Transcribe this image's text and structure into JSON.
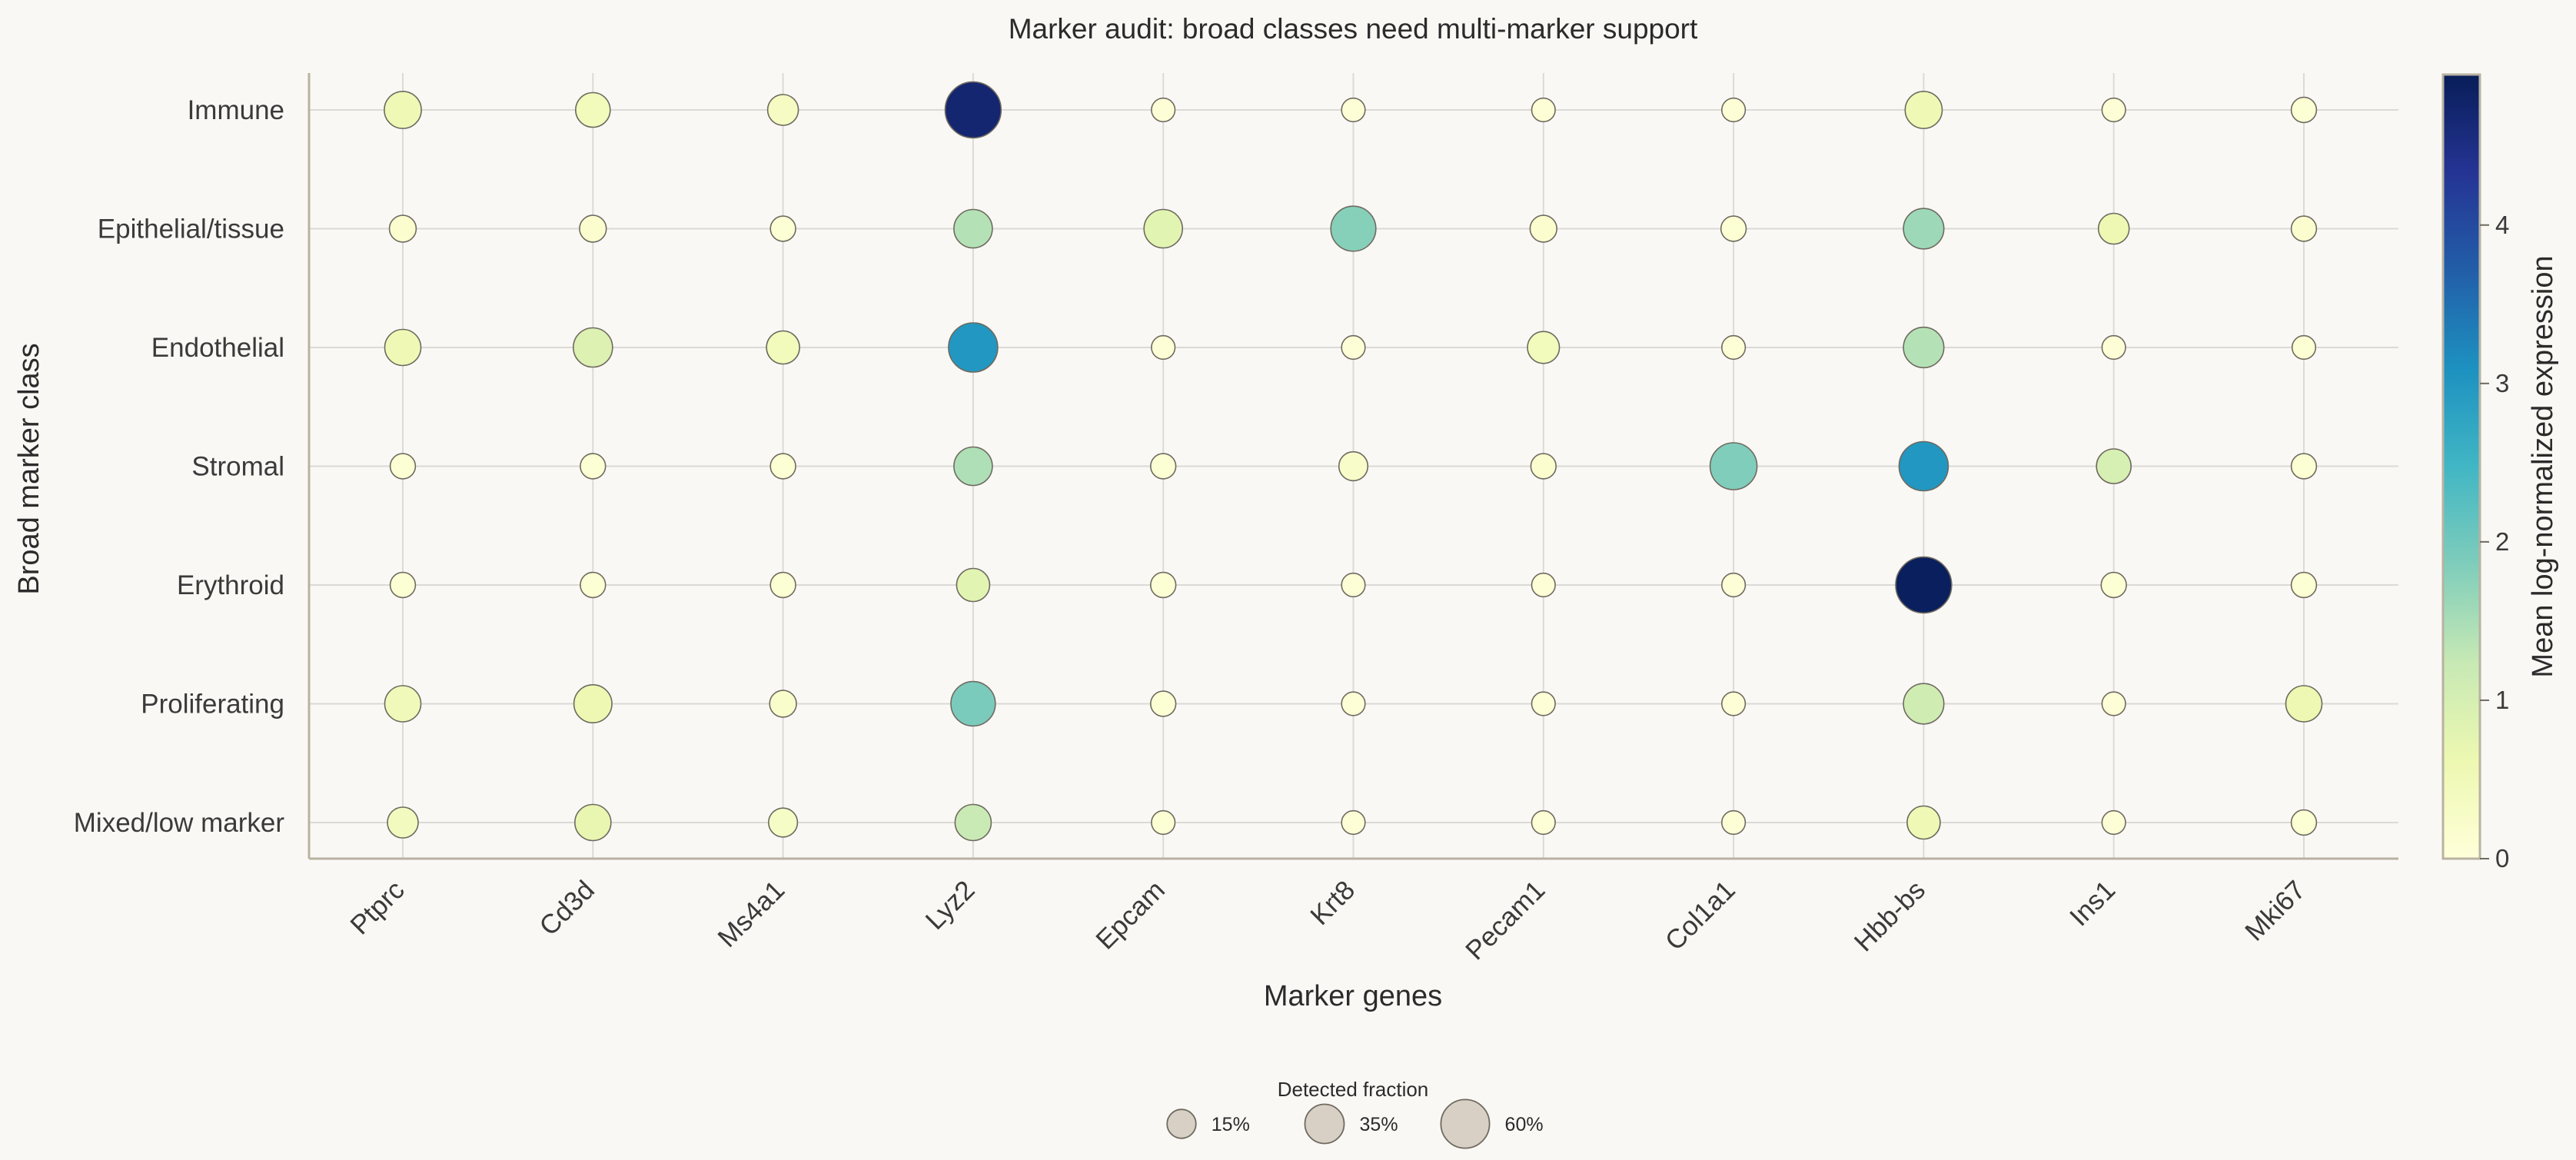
{
  "chart_data": {
    "type": "scatter",
    "subtype": "dot-plot",
    "title": "Marker audit: broad classes need multi-marker support",
    "xlabel": "Marker genes",
    "ylabel": "Broad marker class",
    "genes": [
      "Ptprc",
      "Cd3d",
      "Ms4a1",
      "Lyz2",
      "Epcam",
      "Krt8",
      "Pecam1",
      "Col1a1",
      "Hbb-bs",
      "Ins1",
      "Mki67"
    ],
    "classes": [
      "Immune",
      "Epithelial/tissue",
      "Endothelial",
      "Stromal",
      "Erythroid",
      "Proliferating",
      "Mixed/low marker"
    ],
    "expression": [
      [
        0.55,
        0.45,
        0.35,
        4.7,
        0.05,
        0.05,
        0.05,
        0.05,
        0.55,
        0.05,
        0.1
      ],
      [
        0.15,
        0.15,
        0.1,
        1.4,
        0.8,
        1.8,
        0.15,
        0.1,
        1.6,
        0.6,
        0.15
      ],
      [
        0.55,
        0.9,
        0.45,
        3.0,
        0.05,
        0.05,
        0.45,
        0.05,
        1.4,
        0.05,
        0.1
      ],
      [
        0.1,
        0.1,
        0.1,
        1.45,
        0.1,
        0.25,
        0.15,
        1.85,
        3.0,
        1.0,
        0.1
      ],
      [
        0.1,
        0.1,
        0.1,
        0.8,
        0.1,
        0.05,
        0.05,
        0.05,
        4.9,
        0.1,
        0.1
      ],
      [
        0.5,
        0.6,
        0.2,
        1.9,
        0.1,
        0.05,
        0.05,
        0.05,
        1.1,
        0.05,
        0.6
      ],
      [
        0.4,
        0.7,
        0.3,
        1.2,
        0.1,
        0.05,
        0.05,
        0.05,
        0.55,
        0.05,
        0.1
      ]
    ],
    "detected_fraction": [
      [
        0.3,
        0.25,
        0.18,
        0.85,
        0.08,
        0.08,
        0.08,
        0.08,
        0.3,
        0.08,
        0.1
      ],
      [
        0.12,
        0.12,
        0.1,
        0.33,
        0.33,
        0.5,
        0.12,
        0.1,
        0.38,
        0.18,
        0.1
      ],
      [
        0.28,
        0.35,
        0.22,
        0.62,
        0.08,
        0.08,
        0.2,
        0.08,
        0.38,
        0.08,
        0.08
      ],
      [
        0.1,
        0.1,
        0.1,
        0.33,
        0.1,
        0.15,
        0.1,
        0.55,
        0.62,
        0.25,
        0.1
      ],
      [
        0.1,
        0.1,
        0.1,
        0.22,
        0.1,
        0.08,
        0.08,
        0.08,
        0.85,
        0.1,
        0.1
      ],
      [
        0.28,
        0.32,
        0.12,
        0.48,
        0.1,
        0.08,
        0.08,
        0.08,
        0.38,
        0.08,
        0.28
      ],
      [
        0.18,
        0.28,
        0.15,
        0.28,
        0.08,
        0.08,
        0.08,
        0.08,
        0.22,
        0.08,
        0.1
      ]
    ],
    "colorbar": {
      "label": "Mean log-normalized expression",
      "range": [
        0,
        4.95
      ],
      "ticks": [
        "0",
        "1",
        "2",
        "3",
        "4"
      ],
      "colormap": "YlGnBu",
      "stops": [
        "#ffffd9",
        "#edf8b1",
        "#c7e9b4",
        "#7fcdbb",
        "#41b6c4",
        "#1d91c0",
        "#225ea8",
        "#253494",
        "#081d58"
      ]
    },
    "size_legend": {
      "title": "Detected fraction",
      "entries": [
        {
          "label": "15%",
          "fraction": 0.15
        },
        {
          "label": "35%",
          "fraction": 0.35
        },
        {
          "label": "60%",
          "fraction": 0.6
        }
      ],
      "placement": "bottom-center"
    },
    "grid": true
  }
}
